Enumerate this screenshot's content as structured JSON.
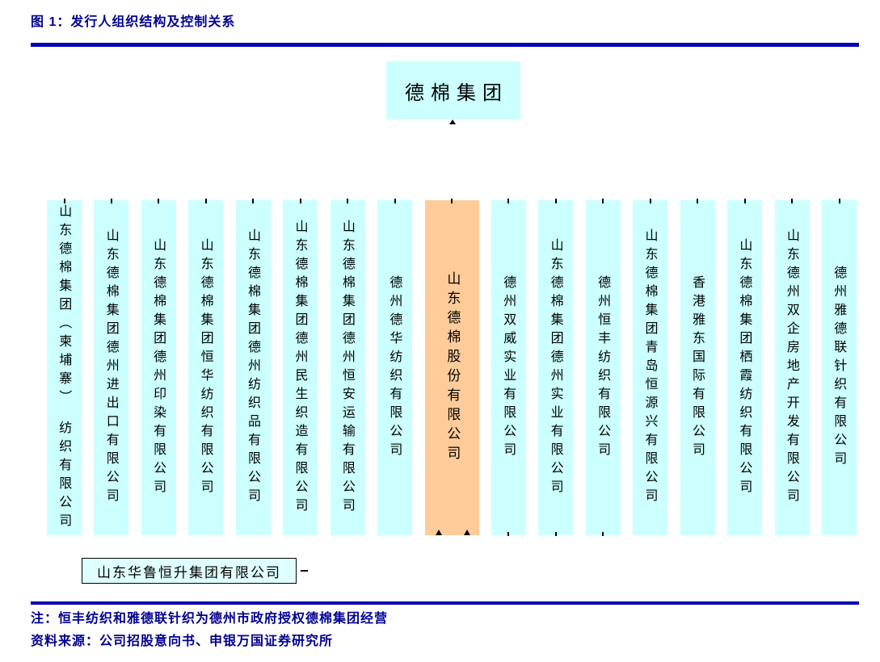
{
  "figure": {
    "title": "图 1：发行人组织结构及控制关系",
    "note": "注：恒丰纺织和雅德联针织为德州市政府授权德棉集团经营",
    "source": "资料来源：公司招股意向书、申银万国证券研究所"
  },
  "org_chart": {
    "parent": {
      "name": "德棉集团"
    },
    "subsidiaries": [
      {
        "name": "山东德棉集团（柬埔寨）　纺织有限公司",
        "highlighted": false
      },
      {
        "name": "山东德棉集团德州进出口有限公司",
        "highlighted": false
      },
      {
        "name": "山东德棉集团德州印染有限公司",
        "highlighted": false
      },
      {
        "name": "山东德棉集团恒华纺织有限公司",
        "highlighted": false
      },
      {
        "name": "山东德棉集团德州纺织品有限公司",
        "highlighted": false
      },
      {
        "name": "山东德棉集团德州民生织造有限公司",
        "highlighted": false
      },
      {
        "name": "山东德棉集团德州恒安运输有限公司",
        "highlighted": false
      },
      {
        "name": "德州德华纺织有限公司",
        "highlighted": false
      },
      {
        "name": "山东德棉股份有限公司",
        "highlighted": true
      },
      {
        "name": "德州双威实业有限公司",
        "highlighted": false
      },
      {
        "name": "山东德棉集团德州实业有限公司",
        "highlighted": false
      },
      {
        "name": "德州恒丰纺织有限公司",
        "highlighted": false
      },
      {
        "name": "山东德棉集团青岛恒源兴有限公司",
        "highlighted": false
      },
      {
        "name": "香港雅东国际有限公司",
        "highlighted": false
      },
      {
        "name": "山东德棉集团栖霞纺织有限公司",
        "highlighted": false
      },
      {
        "name": "山东德州双企房地产开发有限公司",
        "highlighted": false
      },
      {
        "name": "德州雅德联针织有限公司",
        "highlighted": false
      }
    ],
    "shareholder": {
      "name": "山东华鲁恒升集团有限公司"
    }
  },
  "colors": {
    "box_fill": "#CCFFFF",
    "highlight_fill": "#FFCC99",
    "shareholder_fill": "#E0FFFF",
    "rule_blue": "#0000B3",
    "text_navy": "#000090",
    "box_text": "#000000"
  },
  "icons": {
    "connector_tick": "|",
    "arrowhead_up": "▲",
    "connector_dash": "—"
  }
}
